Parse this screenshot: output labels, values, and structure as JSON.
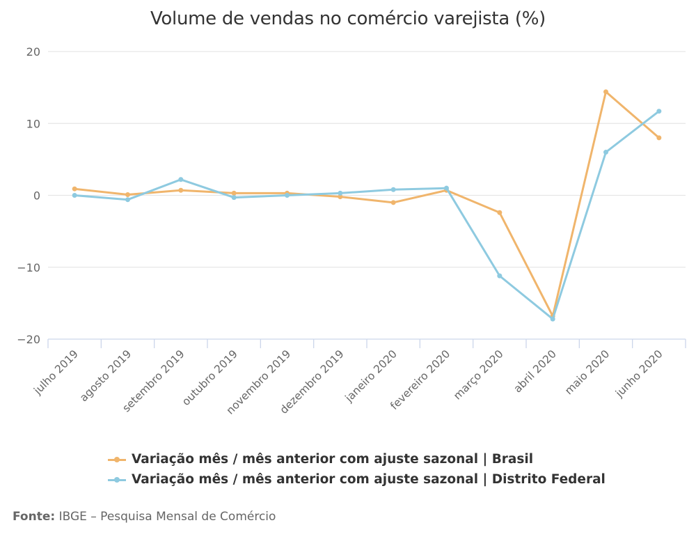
{
  "chart_data": {
    "type": "line",
    "title": "Volume de vendas no comércio varejista (%)",
    "xlabel": "",
    "ylabel": "",
    "ylim": [
      -20,
      20
    ],
    "yticks": [
      20,
      10,
      0,
      -10,
      -20
    ],
    "grid": true,
    "legend_position": "bottom",
    "categories": [
      "julho 2019",
      "agosto 2019",
      "setembro 2019",
      "outubro 2019",
      "novembro 2019",
      "dezembro 2019",
      "janeiro 2020",
      "fevereiro 2020",
      "março 2020",
      "abril 2020",
      "maio 2020",
      "junho 2020"
    ],
    "series": [
      {
        "name": "Variação mês / mês anterior com ajuste sazonal | Brasil",
        "color": "#f0b56c",
        "values": [
          0.9,
          0.1,
          0.7,
          0.3,
          0.3,
          -0.2,
          -1.0,
          0.7,
          -2.4,
          -16.8,
          14.4,
          8.0
        ]
      },
      {
        "name": "Variação mês / mês anterior com ajuste sazonal | Distrito Federal",
        "color": "#8ecae0",
        "values": [
          0.0,
          -0.6,
          2.2,
          -0.3,
          0.0,
          0.3,
          0.8,
          1.0,
          -11.2,
          -17.2,
          6.0,
          11.7
        ]
      }
    ]
  },
  "legend": {
    "items": [
      {
        "label": "Variação mês / mês anterior com ajuste sazonal | Brasil",
        "color": "#f0b56c"
      },
      {
        "label": "Variação mês / mês anterior com ajuste sazonal | Distrito Federal",
        "color": "#8ecae0"
      }
    ]
  },
  "source": {
    "label": "Fonte:",
    "text": " IBGE – Pesquisa Mensal de Comércio"
  }
}
